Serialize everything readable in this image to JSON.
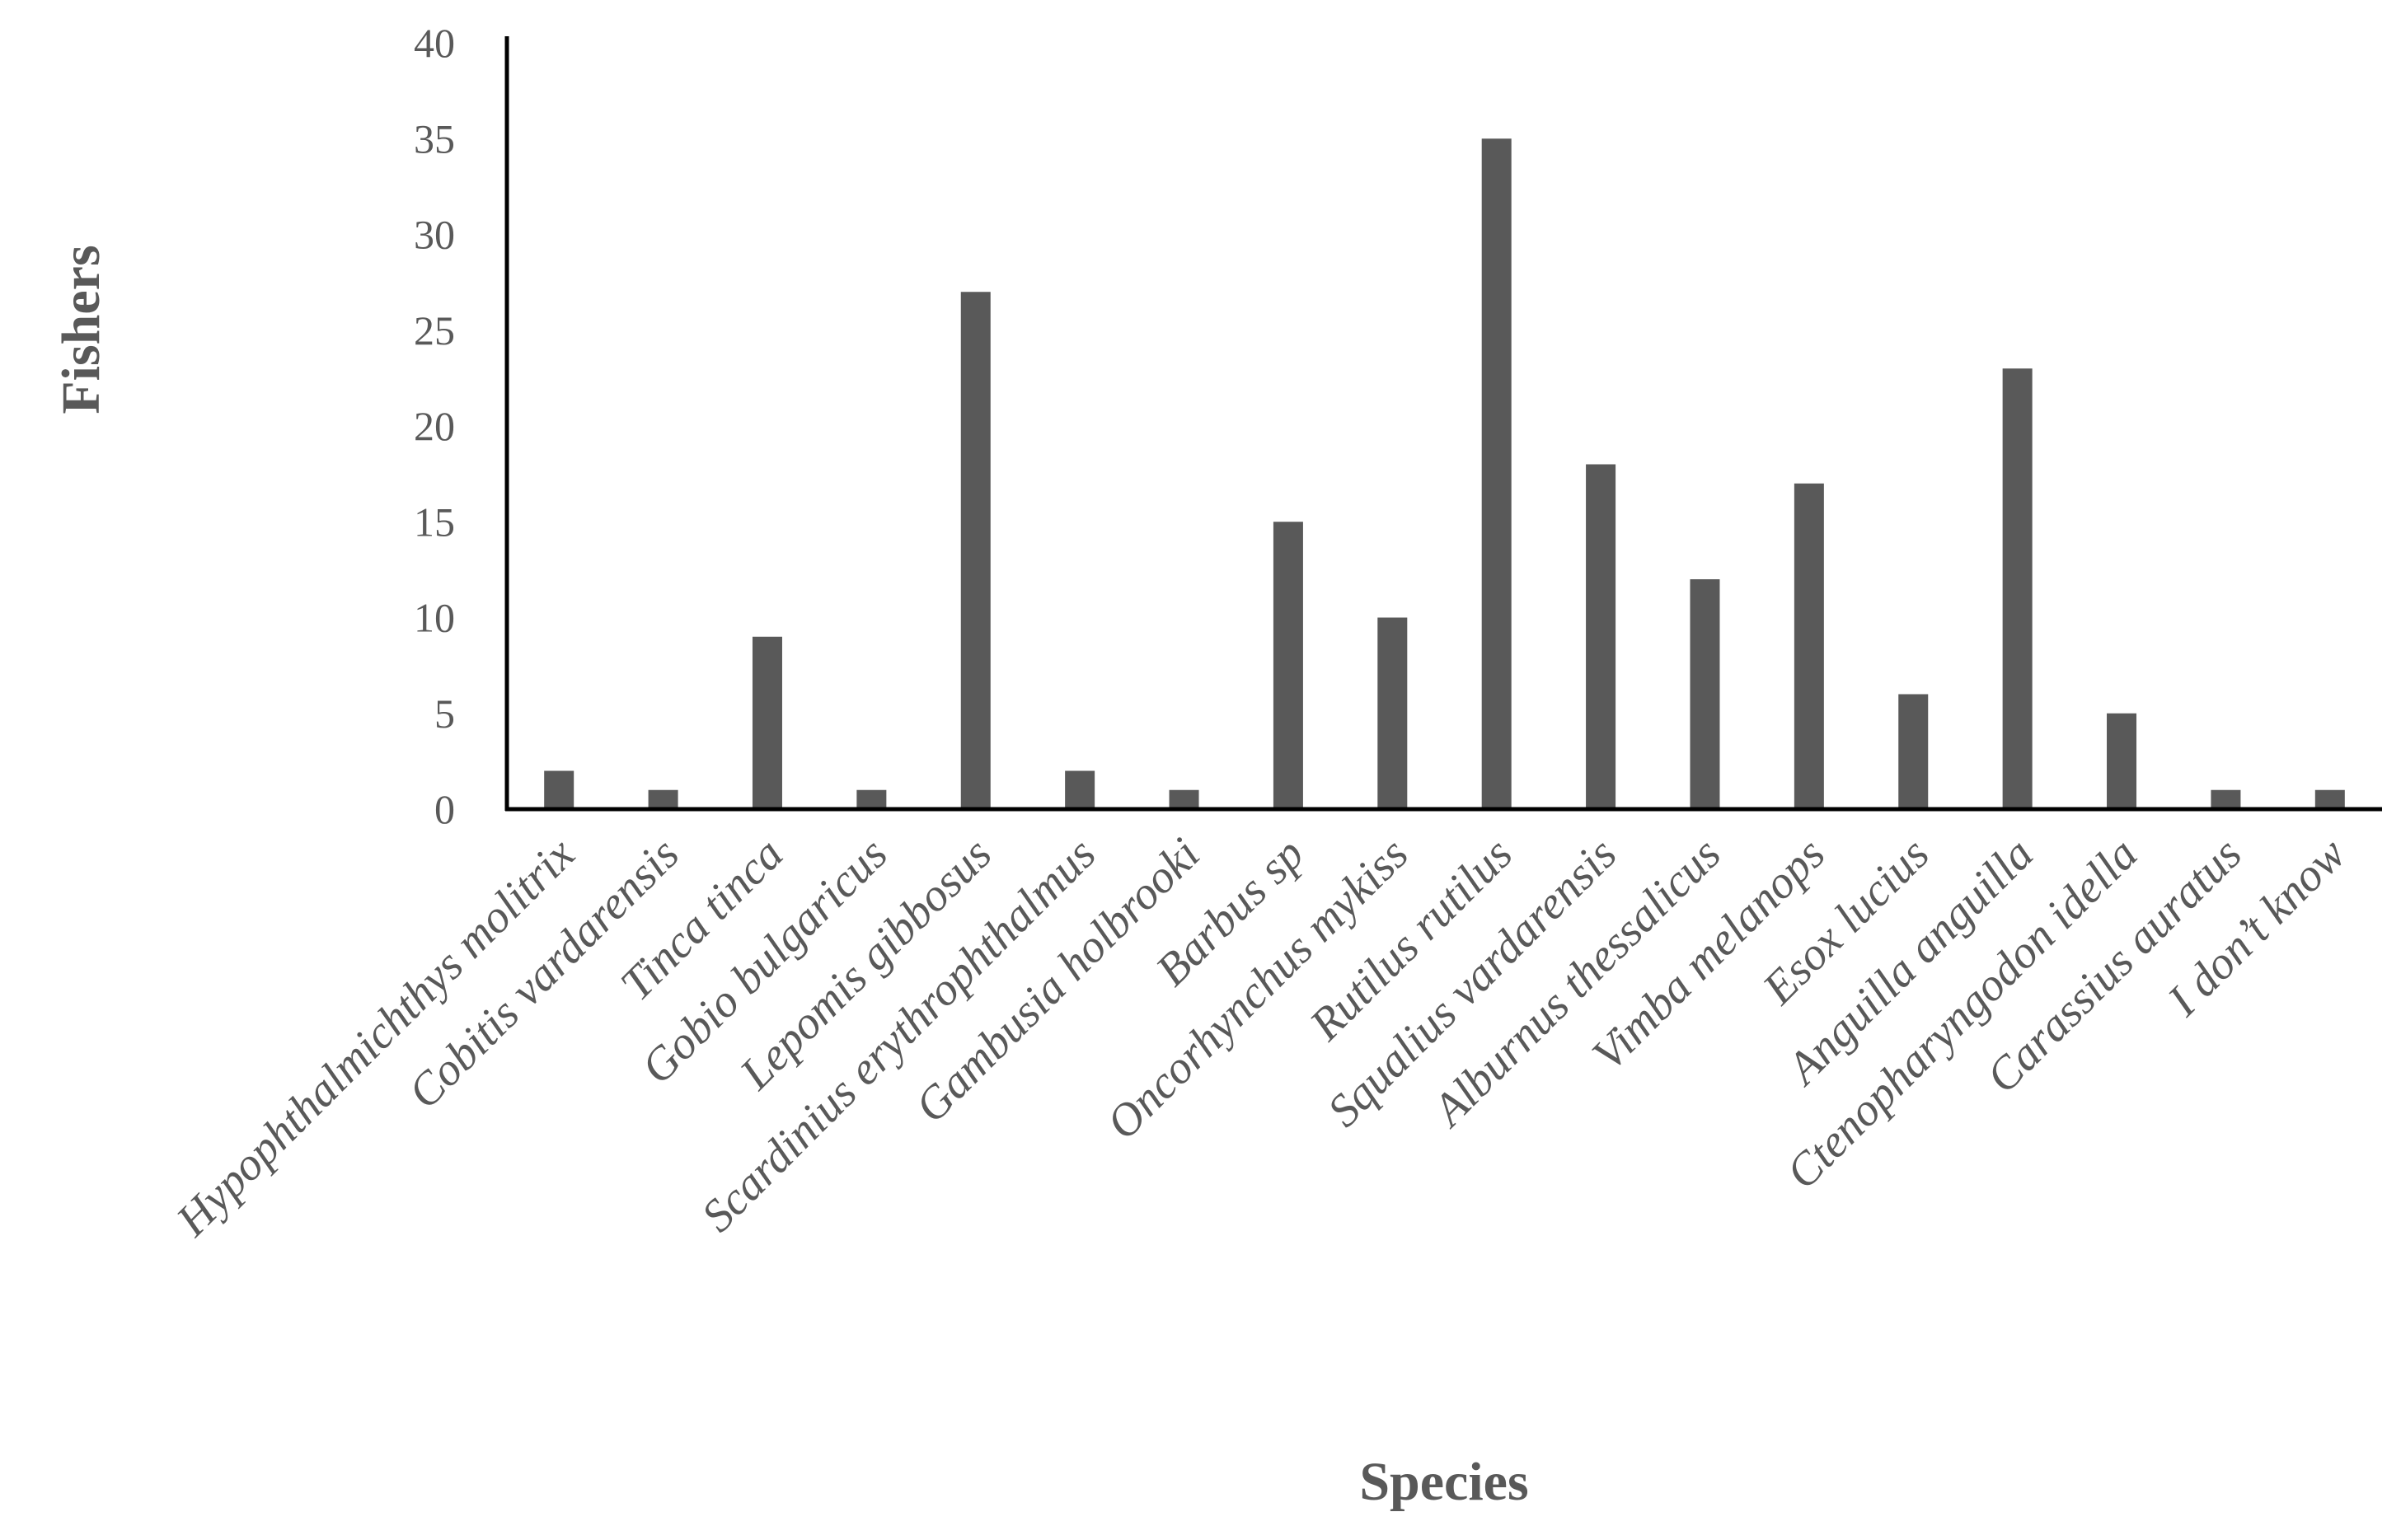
{
  "chart_data": {
    "type": "bar",
    "title": "",
    "xlabel": "Species",
    "ylabel": "Fishers",
    "ylim": [
      0,
      40
    ],
    "yticks": [
      0,
      5,
      10,
      15,
      20,
      25,
      30,
      35,
      40
    ],
    "grid": false,
    "legend": "none",
    "categories": [
      "Hypophthalmichthys molitrix",
      "Cobitis vardarensis",
      "Tinca tinca",
      "Gobio bulgaricus",
      "Lepomis gibbosus",
      "Scardinius erythrophthalmus",
      "Gambusia holbrooki",
      "Barbus sp",
      "Oncorhynchus mykiss",
      "Rutilus rutilus",
      "Squalius vardarensis",
      "Alburnus thessalicus",
      "Vimba melanops",
      "Esox lucius",
      "Anguilla anguilla",
      "Ctenopharyngodon idella",
      "Carassius auratus",
      "I don’t know"
    ],
    "values": [
      2,
      1,
      9,
      1,
      27,
      2,
      1,
      15,
      10,
      35,
      18,
      12,
      17,
      6,
      23,
      5,
      1,
      1
    ],
    "colors": {
      "bar": "#595959",
      "axis": "#000000",
      "text": "#595959"
    }
  }
}
